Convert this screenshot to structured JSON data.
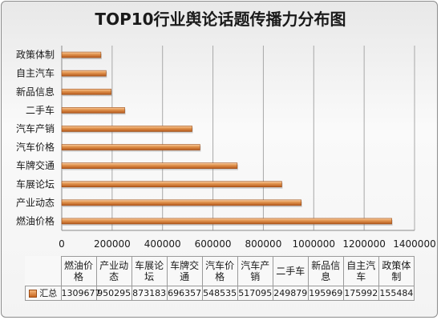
{
  "chart_data": {
    "type": "bar",
    "orientation": "horizontal",
    "title": "TOP10行业舆论话题传播力分布图",
    "categories": [
      "燃油价格",
      "产业动态",
      "车展论坛",
      "车牌交通",
      "汽车价格",
      "汽车产销",
      "二手车",
      "新品信息",
      "自主汽车",
      "政策体制"
    ],
    "series": [
      {
        "name": "汇总",
        "values": [
          1309677,
          950295,
          873183,
          696357,
          548535,
          517095,
          249879,
          195969,
          175992,
          155484
        ]
      }
    ],
    "xlim": [
      0,
      1400000
    ],
    "xticks": [
      "0",
      "200000",
      "400000",
      "600000",
      "800000",
      "1000000",
      "1200000",
      "1400000"
    ],
    "grid": true,
    "data_table": true,
    "bar_color": "#d9853b"
  },
  "table": {
    "headers": [
      "燃油价格",
      "产业动态",
      "车展论坛",
      "车牌交通",
      "汽车价格",
      "汽车产销",
      "二手车",
      "新品信息",
      "自主汽车",
      "政策体制"
    ],
    "header_lines": [
      [
        "燃油价",
        "格"
      ],
      [
        "产业动",
        "态"
      ],
      [
        "车展论",
        "坛"
      ],
      [
        "车牌交",
        "通"
      ],
      [
        "汽车价",
        "格"
      ],
      [
        "汽车产",
        "销"
      ],
      [
        "二手车"
      ],
      [
        "新品信",
        "息"
      ],
      [
        "自主汽",
        "车"
      ],
      [
        "政策体",
        "制"
      ]
    ],
    "row_label": "汇总",
    "values": [
      "1309677",
      "950295",
      "873183",
      "696357",
      "548535",
      "517095",
      "249879",
      "195969",
      "175992",
      "155484"
    ]
  }
}
